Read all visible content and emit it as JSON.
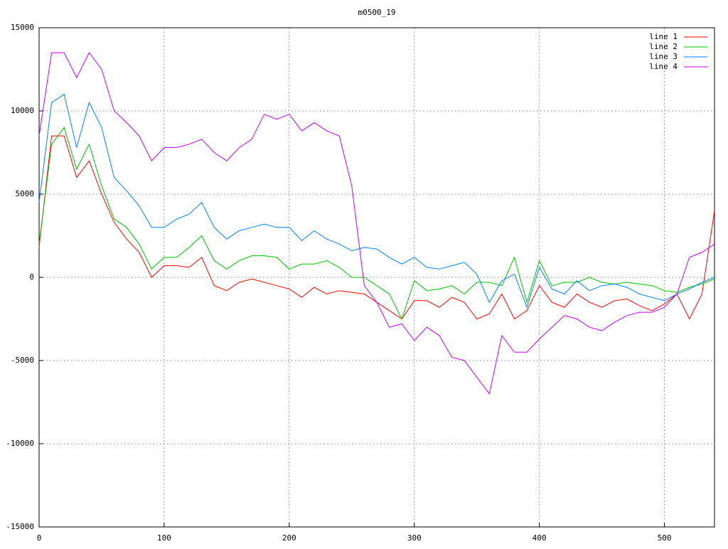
{
  "chart_data": {
    "type": "line",
    "title": "m0500_19",
    "x": [
      0,
      10,
      20,
      30,
      40,
      50,
      60,
      70,
      80,
      90,
      100,
      110,
      120,
      130,
      140,
      150,
      160,
      170,
      180,
      190,
      200,
      210,
      220,
      230,
      240,
      250,
      260,
      270,
      280,
      290,
      300,
      310,
      320,
      330,
      340,
      350,
      360,
      370,
      380,
      390,
      400,
      410,
      420,
      430,
      440,
      450,
      460,
      470,
      480,
      490,
      500,
      510,
      520,
      530,
      540
    ],
    "series": [
      {
        "name": "line 1",
        "color": "#ff0000",
        "values": [
          1800,
          8500,
          8500,
          6000,
          7000,
          5000,
          3300,
          2300,
          1500,
          0,
          700,
          700,
          600,
          1200,
          -500,
          -800,
          -300,
          -100,
          -300,
          -500,
          -700,
          -1200,
          -600,
          -1000,
          -800,
          -900,
          -1000,
          -1500,
          -2000,
          -2500,
          -1400,
          -1400,
          -1800,
          -1200,
          -1500,
          -2500,
          -2200,
          -1000,
          -2500,
          -2000,
          -500,
          -1500,
          -1800,
          -1000,
          -1500,
          -1800,
          -1400,
          -1300,
          -1700,
          -2000,
          -1600,
          -1000,
          -2500,
          -1000,
          4000
        ]
      },
      {
        "name": "line 2",
        "color": "#00c000",
        "values": [
          2000,
          8000,
          9000,
          6500,
          8000,
          5500,
          3500,
          3000,
          2000,
          500,
          1200,
          1200,
          1800,
          2500,
          1000,
          500,
          1000,
          1300,
          1300,
          1200,
          500,
          800,
          800,
          1000,
          600,
          0,
          0,
          -500,
          -1000,
          -2500,
          -200,
          -800,
          -700,
          -500,
          -1000,
          -300,
          -300,
          -500,
          1200,
          -1500,
          1000,
          -500,
          -300,
          -300,
          0,
          -300,
          -400,
          -300,
          -400,
          -500,
          -800,
          -900,
          -600,
          -400,
          -100
        ]
      },
      {
        "name": "line 3",
        "color": "#0080ff",
        "values": [
          4500,
          10500,
          11000,
          7800,
          10500,
          9000,
          6000,
          5200,
          4300,
          3000,
          3000,
          3500,
          3800,
          4500,
          3000,
          2300,
          2800,
          3000,
          3200,
          3000,
          3000,
          2200,
          2800,
          2300,
          2000,
          1600,
          1800,
          1700,
          1200,
          800,
          1200,
          600,
          500,
          700,
          900,
          200,
          -1500,
          -200,
          200,
          -1800,
          600,
          -700,
          -1000,
          -200,
          -800,
          -500,
          -400,
          -600,
          -1000,
          -1200,
          -1400,
          -1000,
          -700,
          -300,
          0
        ]
      },
      {
        "name": "line 4",
        "color": "#c000ff",
        "values": [
          8500,
          13500,
          13500,
          12000,
          13500,
          12500,
          10000,
          9300,
          8500,
          7000,
          7800,
          7800,
          8000,
          8300,
          7500,
          7000,
          7800,
          8300,
          9800,
          9500,
          9800,
          8800,
          9300,
          8800,
          8500,
          5500,
          -500,
          -1500,
          -3000,
          -2800,
          -3800,
          -3000,
          -3500,
          -4800,
          -5000,
          -6000,
          -7000,
          -3500,
          -4500,
          -4500,
          -3700,
          -3000,
          -2300,
          -2500,
          -3000,
          -3200,
          -2700,
          -2300,
          -2100,
          -2100,
          -1800,
          -1000,
          1200,
          1500,
          2000
        ]
      }
    ],
    "xlim": [
      0,
      540
    ],
    "xticks": [
      0,
      100,
      200,
      300,
      400,
      500
    ],
    "ylim": [
      -15000,
      15000
    ],
    "yticks": [
      -15000,
      -10000,
      -5000,
      0,
      5000,
      10000,
      15000
    ],
    "grid": true,
    "legend": "top-right"
  }
}
